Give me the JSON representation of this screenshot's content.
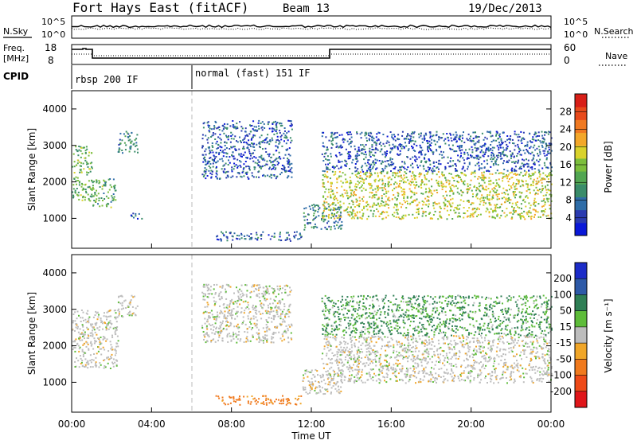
{
  "header": {
    "station": "Fort Hays East (fitACF)",
    "beam": "Beam 13",
    "date": "19/Dec/2013"
  },
  "top_panels": {
    "nsky_label": "N.Sky",
    "nsearch_label": "N.Search",
    "noise_ticks": [
      "10^5",
      "10^0"
    ],
    "freq_label": "Freq.",
    "freq_unit": "[MHz]",
    "freq_ticks": [
      "18",
      "8"
    ],
    "nave_label": "Nave",
    "nave_ticks": [
      "60",
      "0"
    ],
    "cpid_label": "CPID",
    "cpid_segments": [
      {
        "label": "rbsp 200 IF",
        "start_hour": 0
      },
      {
        "label": "normal (fast) 151 IF",
        "start_hour": 6
      }
    ]
  },
  "chart_data": [
    {
      "type": "heatmap",
      "title": "Power",
      "ylabel": "Slant Range [km]",
      "ylim": [
        180,
        4500
      ],
      "yticks": [
        1000,
        2000,
        3000,
        4000
      ],
      "xlim_hours": [
        0,
        24
      ],
      "colorbar": {
        "label": "Power [dB]",
        "range": [
          0,
          32
        ],
        "ticks": [
          4,
          8,
          12,
          16,
          20,
          24,
          28
        ],
        "colors": [
          "#0a18d8",
          "#2a3ab0",
          "#2f6da8",
          "#3a8c6a",
          "#52a652",
          "#7cbe3c",
          "#d9d22c",
          "#f3a72a",
          "#f07a22",
          "#e84a1c",
          "#d81f18"
        ]
      },
      "echo_regions": [
        {
          "t": [
            0.0,
            1.0
          ],
          "range_km": [
            1500,
            3000
          ],
          "power_db": 14
        },
        {
          "t": [
            1.0,
            2.2
          ],
          "range_km": [
            1300,
            2100
          ],
          "power_db": 13
        },
        {
          "t": [
            2.3,
            3.3
          ],
          "range_km": [
            2800,
            3400
          ],
          "power_db": 10
        },
        {
          "t": [
            2.9,
            3.5
          ],
          "range_km": [
            1000,
            1200
          ],
          "power_db": 5
        },
        {
          "t": [
            6.5,
            11.0
          ],
          "range_km": [
            2100,
            3700
          ],
          "power_db": 6
        },
        {
          "t": [
            7.2,
            11.5
          ],
          "range_km": [
            400,
            650
          ],
          "power_db": 7
        },
        {
          "t": [
            11.5,
            13.5
          ],
          "range_km": [
            700,
            1400
          ],
          "power_db": 9
        },
        {
          "t": [
            12.5,
            24.0
          ],
          "range_km": [
            1000,
            2300
          ],
          "power_db": 18
        },
        {
          "t": [
            12.5,
            24.0
          ],
          "range_km": [
            2300,
            3400
          ],
          "power_db": 6
        }
      ]
    },
    {
      "type": "heatmap",
      "title": "Velocity",
      "ylabel": "Slant Range [km]",
      "ylim": [
        180,
        4500
      ],
      "yticks": [
        1000,
        2000,
        3000,
        4000
      ],
      "xlim_hours": [
        0,
        24
      ],
      "xticks": [
        "00:00",
        "04:00",
        "08:00",
        "12:00",
        "16:00",
        "20:00",
        "00:00"
      ],
      "xlabel": "Time UT",
      "colorbar": {
        "label": "Velocity [m s⁻¹]",
        "ticks": [
          "200",
          "100",
          "50",
          "15",
          "-15",
          "-50",
          "-100",
          "-200"
        ],
        "colors": [
          "#1c2cc8",
          "#2e5aa8",
          "#2f7f55",
          "#5ebc3a",
          "#bdbdbd",
          "#f0a629",
          "#f07a1e",
          "#ee4a18",
          "#e0161a"
        ]
      },
      "ground_scatter_color": "#bdbdbd",
      "echo_regions": [
        {
          "t": [
            0.0,
            2.3
          ],
          "range_km": [
            1400,
            3000
          ],
          "velocity": 0
        },
        {
          "t": [
            2.3,
            3.3
          ],
          "range_km": [
            2800,
            3400
          ],
          "velocity": 0
        },
        {
          "t": [
            6.5,
            11.0
          ],
          "range_km": [
            2100,
            3700
          ],
          "velocity": 0
        },
        {
          "t": [
            7.2,
            11.5
          ],
          "range_km": [
            400,
            650
          ],
          "velocity": -40
        },
        {
          "t": [
            11.5,
            13.5
          ],
          "range_km": [
            700,
            1400
          ],
          "velocity": 0
        },
        {
          "t": [
            12.5,
            24.0
          ],
          "range_km": [
            1000,
            2300
          ],
          "velocity": 0
        },
        {
          "t": [
            12.5,
            24.0
          ],
          "range_km": [
            2300,
            3400
          ],
          "velocity": 30
        }
      ]
    }
  ]
}
